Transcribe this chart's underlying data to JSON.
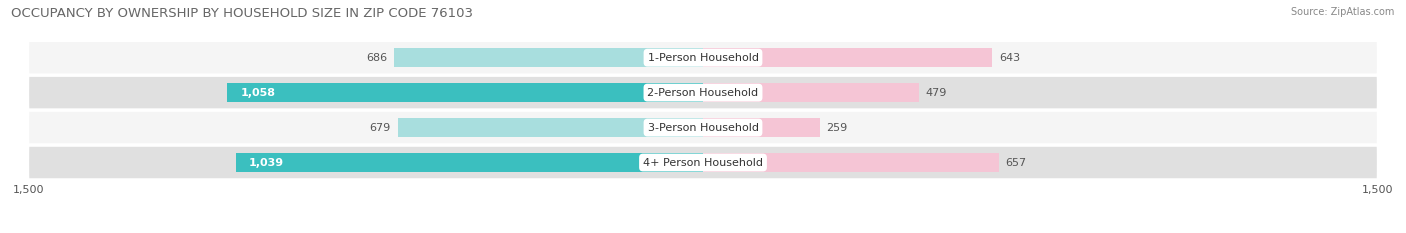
{
  "title": "OCCUPANCY BY OWNERSHIP BY HOUSEHOLD SIZE IN ZIP CODE 76103",
  "source": "Source: ZipAtlas.com",
  "categories": [
    "1-Person Household",
    "2-Person Household",
    "3-Person Household",
    "4+ Person Household"
  ],
  "owner_values": [
    686,
    1058,
    679,
    1039
  ],
  "renter_values": [
    643,
    479,
    259,
    657
  ],
  "owner_color_dark": "#3bbfbf",
  "owner_color_light": "#a8dede",
  "renter_color_dark": "#f07fa0",
  "renter_color_light": "#f5c5d5",
  "row_bg_light": "#f5f5f5",
  "row_bg_dark": "#e0e0e0",
  "axis_max": 1500,
  "label_fontsize": 8,
  "title_fontsize": 9.5,
  "category_label_fontsize": 8
}
